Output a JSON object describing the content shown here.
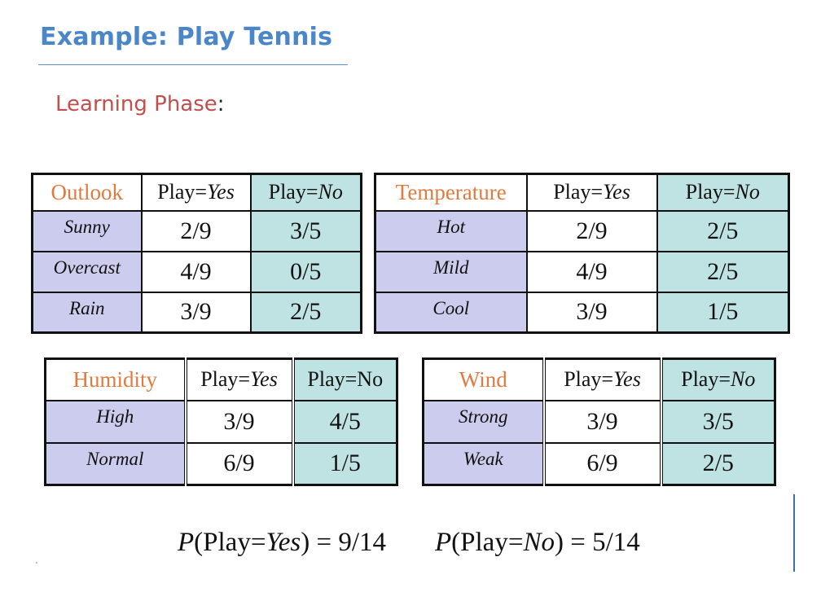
{
  "title": "Example: Play Tennis",
  "subtitle": {
    "text": "Learning Phase",
    "colon": ":"
  },
  "tables": {
    "outlook": {
      "attr": "Outlook",
      "yes_head": {
        "prefix": "Play=",
        "val": "Yes"
      },
      "no_head": {
        "prefix": "Play=",
        "val": "No"
      },
      "rows": [
        {
          "label": "Sunny",
          "yes": "2/9",
          "no": "3/5"
        },
        {
          "label": "Overcast",
          "yes": "4/9",
          "no": "0/5"
        },
        {
          "label": "Rain",
          "yes": "3/9",
          "no": "2/5"
        }
      ]
    },
    "temperature": {
      "attr": "Temperature",
      "yes_head": {
        "prefix": "Play=",
        "val": "Yes"
      },
      "no_head": {
        "prefix": "Play=",
        "val": "No"
      },
      "rows": [
        {
          "label": "Hot",
          "yes": "2/9",
          "no": "2/5"
        },
        {
          "label": "Mild",
          "yes": "4/9",
          "no": "2/5"
        },
        {
          "label": "Cool",
          "yes": "3/9",
          "no": "1/5"
        }
      ]
    },
    "humidity": {
      "attr": "Humidity",
      "yes_head": {
        "prefix": "Play=",
        "val": "Yes"
      },
      "no_head": {
        "prefix": "Play=",
        "val": "No"
      },
      "rows": [
        {
          "label": "High",
          "yes": "3/9",
          "no": "4/5"
        },
        {
          "label": "Normal",
          "yes": "6/9",
          "no": "1/5"
        }
      ]
    },
    "wind": {
      "attr": "Wind",
      "yes_head": {
        "prefix": "Play=",
        "val": "Yes"
      },
      "no_head": {
        "prefix": "Play=",
        "val": "No"
      },
      "rows": [
        {
          "label": "Strong",
          "yes": "3/9",
          "no": "3/5"
        },
        {
          "label": "Weak",
          "yes": "6/9",
          "no": "2/5"
        }
      ]
    }
  },
  "priors": {
    "yes": {
      "p": "P",
      "open": "(Play=",
      "val": "Yes",
      "close": ") = 9/14"
    },
    "no": {
      "p": "P",
      "open": "(Play=",
      "val": "No",
      "close": ") = 5/14"
    }
  }
}
